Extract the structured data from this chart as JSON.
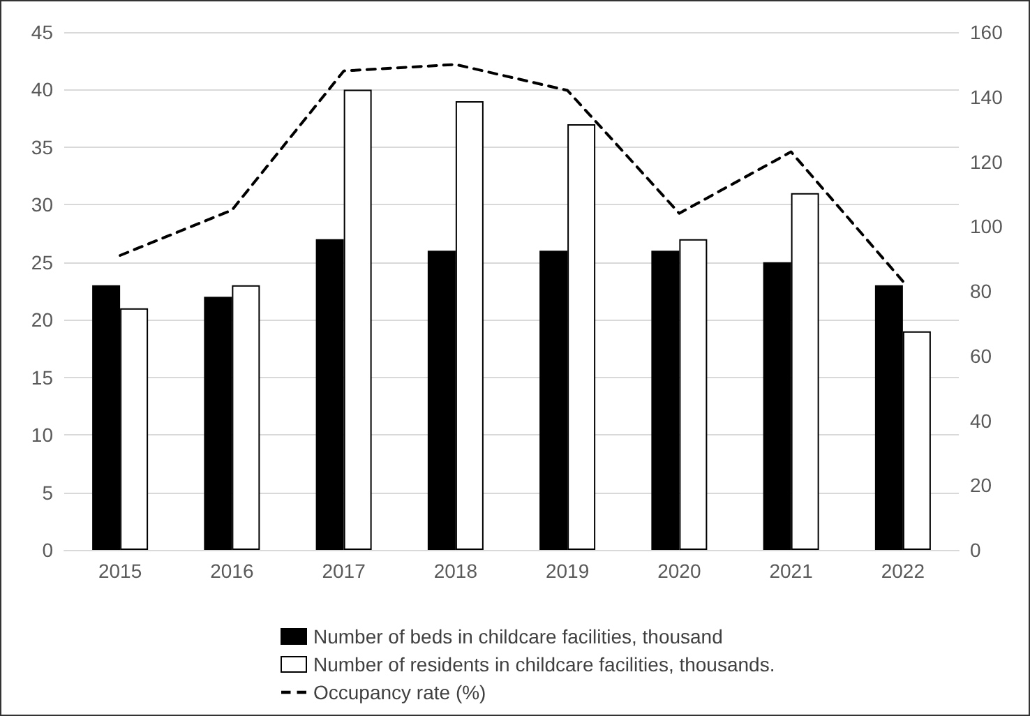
{
  "chart_data": {
    "type": "bar",
    "categories": [
      "2015",
      "2016",
      "2017",
      "2018",
      "2019",
      "2020",
      "2021",
      "2022"
    ],
    "series": [
      {
        "name": "Number of beds in childcare facilities, thousand",
        "color": "#000000",
        "values": [
          23,
          22,
          27,
          26,
          26,
          26,
          25,
          23
        ]
      },
      {
        "name": "Number of residents in childcare facilities, thousands.",
        "color": "#ffffff",
        "values": [
          21,
          23,
          40,
          39,
          37,
          27,
          31,
          19
        ]
      },
      {
        "name": "Occupancy rate (%)",
        "type": "line",
        "axis": "y2",
        "color": "#000000",
        "line_style": "dashed",
        "marker": "none",
        "values": [
          91,
          105,
          148,
          150,
          142,
          104,
          123,
          83
        ]
      }
    ],
    "ylim": [
      0,
      45
    ],
    "yticks": [
      0,
      5,
      10,
      15,
      20,
      25,
      30,
      35,
      40,
      45
    ],
    "y2lim": [
      0,
      160
    ],
    "y2ticks": [
      0,
      20,
      40,
      60,
      80,
      100,
      120,
      140,
      160
    ],
    "grid": "y",
    "legend": "bottom"
  }
}
